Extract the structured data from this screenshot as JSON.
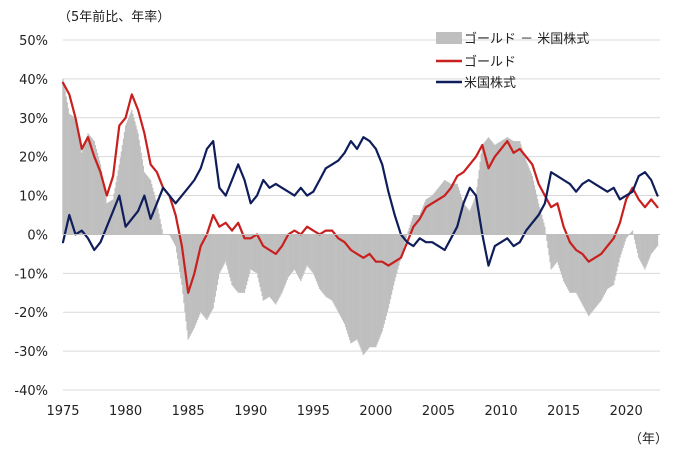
{
  "chart_data": {
    "type": "line",
    "unit_label": "（5年前比、年率）",
    "xaxis_unit": "（年）",
    "xlim": [
      1975,
      2022.7
    ],
    "ylim": [
      -40,
      50
    ],
    "yticks": [
      -40,
      -30,
      -20,
      -10,
      0,
      10,
      20,
      30,
      40,
      50
    ],
    "ytick_labels": [
      "-40%",
      "-30%",
      "-20%",
      "-10%",
      "0%",
      "10%",
      "20%",
      "30%",
      "40%",
      "50%"
    ],
    "xticks": [
      1975,
      1980,
      1985,
      1990,
      1995,
      2000,
      2005,
      2010,
      2015,
      2020
    ],
    "xtick_labels": [
      "1975",
      "1980",
      "1985",
      "1990",
      "1995",
      "2000",
      "2005",
      "2010",
      "2015",
      "2020"
    ],
    "grid": true,
    "legend_position": "top-right",
    "colors": {
      "diff": "#bfbfbf",
      "gold": "#c8201e",
      "stocks": "#0f1e5a",
      "grid": "#d9d9d9"
    },
    "legend": [
      {
        "key": "diff",
        "label": "ゴールド － 米国株式",
        "style": "bar"
      },
      {
        "key": "gold",
        "label": "ゴールド",
        "style": "line"
      },
      {
        "key": "stocks",
        "label": "米国株式",
        "style": "line"
      }
    ],
    "x": [
      1975.0,
      1975.5,
      1976.0,
      1976.5,
      1977.0,
      1977.5,
      1978.0,
      1978.5,
      1979.0,
      1979.5,
      1980.0,
      1980.5,
      1981.0,
      1981.5,
      1982.0,
      1982.5,
      1983.0,
      1983.5,
      1984.0,
      1984.5,
      1985.0,
      1985.5,
      1986.0,
      1986.5,
      1987.0,
      1987.5,
      1988.0,
      1988.5,
      1989.0,
      1989.5,
      1990.0,
      1990.5,
      1991.0,
      1991.5,
      1992.0,
      1992.5,
      1993.0,
      1993.5,
      1994.0,
      1994.5,
      1995.0,
      1995.5,
      1996.0,
      1996.5,
      1997.0,
      1997.5,
      1998.0,
      1998.5,
      1999.0,
      1999.5,
      2000.0,
      2000.5,
      2001.0,
      2001.5,
      2002.0,
      2002.5,
      2003.0,
      2003.5,
      2004.0,
      2004.5,
      2005.0,
      2005.5,
      2006.0,
      2006.5,
      2007.0,
      2007.5,
      2008.0,
      2008.5,
      2009.0,
      2009.5,
      2010.0,
      2010.5,
      2011.0,
      2011.5,
      2012.0,
      2012.5,
      2013.0,
      2013.5,
      2014.0,
      2014.5,
      2015.0,
      2015.5,
      2016.0,
      2016.5,
      2017.0,
      2017.5,
      2018.0,
      2018.5,
      2019.0,
      2019.5,
      2020.0,
      2020.5,
      2021.0,
      2021.5,
      2022.0,
      2022.5
    ],
    "series": [
      {
        "name": "ゴールド",
        "key": "gold",
        "values": [
          39,
          36,
          30,
          22,
          25,
          20,
          16,
          10,
          15,
          28,
          30,
          36,
          32,
          26,
          18,
          16,
          12,
          10,
          5,
          -3,
          -15,
          -10,
          -3,
          0,
          5,
          2,
          3,
          1,
          3,
          -1,
          -1,
          0,
          -3,
          -4,
          -5,
          -3,
          0,
          1,
          0,
          2,
          1,
          0,
          1,
          1,
          -1,
          -2,
          -4,
          -5,
          -6,
          -5,
          -7,
          -7,
          -8,
          -7,
          -6,
          -2,
          2,
          4,
          7,
          8,
          9,
          10,
          12,
          15,
          16,
          18,
          20,
          23,
          17,
          20,
          22,
          24,
          21,
          22,
          20,
          18,
          13,
          10,
          7,
          8,
          2,
          -2,
          -4,
          -5,
          -7,
          -6,
          -5,
          -3,
          -1,
          3,
          9,
          12,
          9,
          7,
          9,
          7
        ]
      },
      {
        "name": "米国株式",
        "key": "stocks",
        "values": [
          -2,
          5,
          0,
          1,
          -1,
          -4,
          -2,
          2,
          6,
          10,
          2,
          4,
          6,
          10,
          4,
          8,
          12,
          10,
          8,
          10,
          12,
          14,
          17,
          22,
          24,
          12,
          10,
          14,
          18,
          14,
          8,
          10,
          14,
          12,
          13,
          12,
          11,
          10,
          12,
          10,
          11,
          14,
          17,
          18,
          19,
          21,
          24,
          22,
          25,
          24,
          22,
          18,
          11,
          5,
          0,
          -2,
          -3,
          -1,
          -2,
          -2,
          -3,
          -4,
          -1,
          2,
          8,
          12,
          10,
          0,
          -8,
          -3,
          -2,
          -1,
          -3,
          -2,
          1,
          3,
          5,
          8,
          16,
          15,
          14,
          13,
          11,
          13,
          14,
          13,
          12,
          11,
          12,
          9,
          10,
          11,
          15,
          16,
          14,
          10
        ]
      }
    ],
    "diff_series": {
      "name": "ゴールド － 米国株式",
      "key": "diff",
      "values": [
        40,
        31,
        30,
        21,
        26,
        24,
        18,
        8,
        9,
        18,
        28,
        32,
        26,
        16,
        14,
        8,
        0,
        0,
        -3,
        -13,
        -27,
        -24,
        -20,
        -22,
        -19,
        -10,
        -7,
        -13,
        -15,
        -15,
        -9,
        -10,
        -17,
        -16,
        -18,
        -15,
        -11,
        -9,
        -12,
        -8,
        -10,
        -14,
        -16,
        -17,
        -20,
        -23,
        -28,
        -27,
        -31,
        -29,
        -29,
        -25,
        -19,
        -12,
        -6,
        0,
        5,
        5,
        9,
        10,
        12,
        14,
        13,
        13,
        8,
        6,
        10,
        23,
        25,
        23,
        24,
        25,
        24,
        24,
        19,
        15,
        8,
        2,
        -9,
        -7,
        -12,
        -15,
        -15,
        -18,
        -21,
        -19,
        -17,
        -14,
        -13,
        -6,
        -1,
        1,
        -6,
        -9,
        -5,
        -3
      ]
    }
  }
}
